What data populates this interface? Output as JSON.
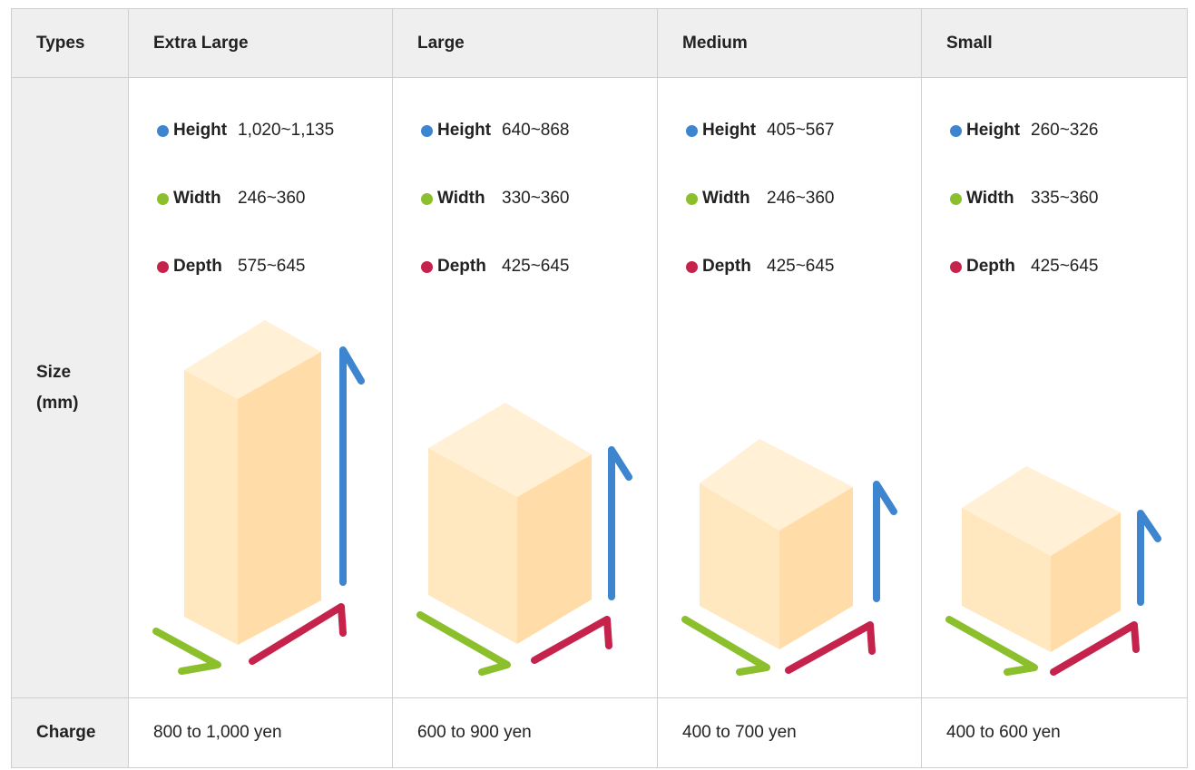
{
  "table": {
    "types_label": "Types",
    "size_label_line1": "Size",
    "size_label_line2": "(mm)",
    "charge_label": "Charge",
    "colors": {
      "height": "#3d86cf",
      "width": "#8bbf2c",
      "depth": "#c5234b",
      "box_light": "#fff0d6",
      "box_mid": "#ffe7bf",
      "box_dark": "#ffdca8"
    },
    "columns": [
      {
        "name": "Extra Large",
        "dims": [
          {
            "label": "Height",
            "value": "1,020~1,135"
          },
          {
            "label": "Width",
            "value": "246~360"
          },
          {
            "label": "Depth",
            "value": "575~645"
          }
        ],
        "charge": "800 to 1,000 yen"
      },
      {
        "name": "Large",
        "dims": [
          {
            "label": "Height",
            "value": "640~868"
          },
          {
            "label": "Width",
            "value": "330~360"
          },
          {
            "label": "Depth",
            "value": "425~645"
          }
        ],
        "charge": "600 to 900 yen"
      },
      {
        "name": "Medium",
        "dims": [
          {
            "label": "Height",
            "value": "405~567"
          },
          {
            "label": "Width",
            "value": "246~360"
          },
          {
            "label": "Depth",
            "value": "425~645"
          }
        ],
        "charge": "400 to 700 yen"
      },
      {
        "name": "Small",
        "dims": [
          {
            "label": "Height",
            "value": "260~326"
          },
          {
            "label": "Width",
            "value": "335~360"
          },
          {
            "label": "Depth",
            "value": "425~645"
          }
        ],
        "charge": "400 to 600 yen"
      }
    ]
  }
}
